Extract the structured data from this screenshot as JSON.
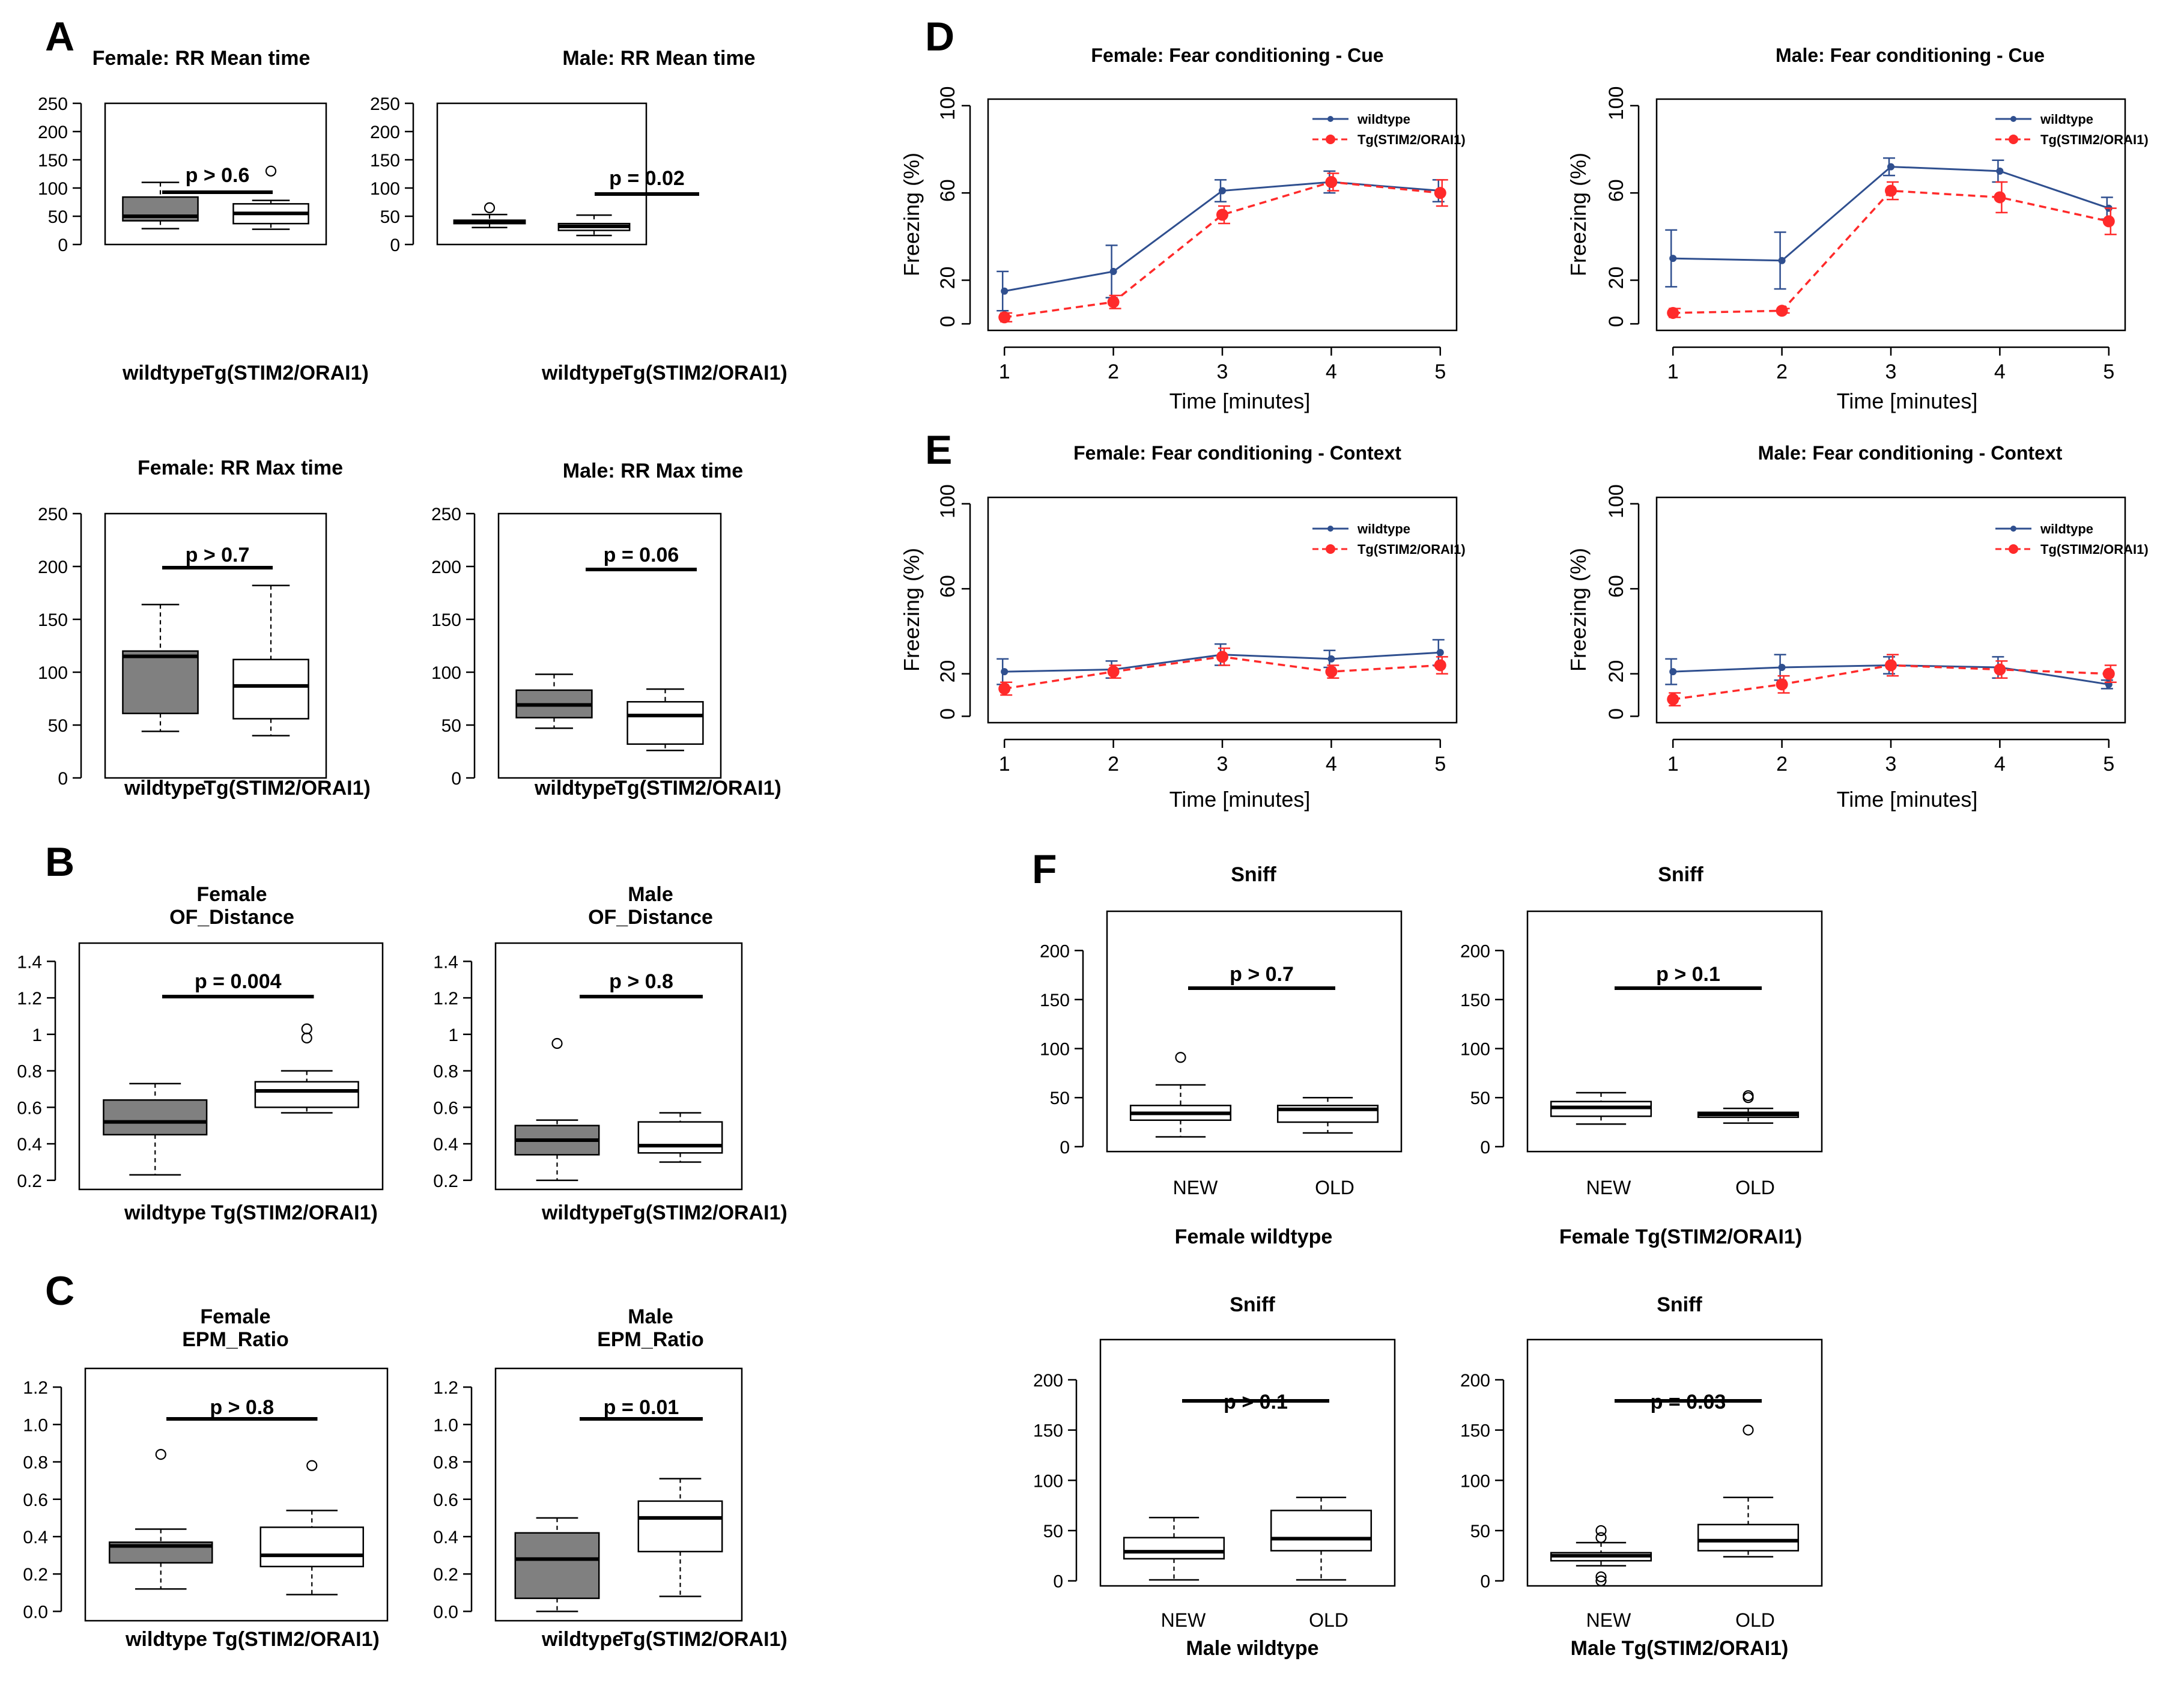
{
  "figure": {
    "panel_labels": [
      "A",
      "B",
      "C",
      "D",
      "E",
      "F"
    ]
  },
  "colors": {
    "wildtype": "#2f4f8f",
    "tg": "#ff2a2a",
    "box_fill_dark": "#808080",
    "box_fill_light": "#ffffff"
  },
  "chart_data": [
    {
      "id": "A1",
      "type": "boxplot",
      "panel": "A",
      "title": [
        "Female: RR Mean time"
      ],
      "categories": [
        "wildtype",
        "Tg(STIM2/ORAI1)"
      ],
      "ylim": [
        0,
        250
      ],
      "yticks": [
        0,
        50,
        100,
        150,
        200,
        250
      ],
      "ytick_labels": [
        "0",
        "50",
        "100",
        "150",
        "200",
        "250"
      ],
      "pvalue": "p > 0.6",
      "boxes": [
        {
          "min": 28,
          "q1": 42,
          "median": 50,
          "q3": 84,
          "max": 110,
          "outliers": []
        },
        {
          "min": 27,
          "q1": 37,
          "median": 55,
          "q3": 72,
          "max": 78,
          "outliers": [
            130
          ]
        }
      ]
    },
    {
      "id": "A2",
      "type": "boxplot",
      "panel": "A",
      "title": [
        "Male: RR Mean time"
      ],
      "categories": [
        "wildtype",
        "Tg(STIM2/ORAI1)"
      ],
      "ylim": [
        0,
        250
      ],
      "yticks": [
        0,
        50,
        100,
        150,
        200,
        250
      ],
      "ytick_labels": [
        "0",
        "50",
        "100",
        "150",
        "200",
        "250"
      ],
      "pvalue": "p = 0.02",
      "boxes": [
        {
          "min": 30,
          "q1": 37,
          "median": 40,
          "q3": 43,
          "max": 53,
          "outliers": [
            65
          ]
        },
        {
          "min": 16,
          "q1": 25,
          "median": 32,
          "q3": 37,
          "max": 52,
          "outliers": []
        }
      ]
    },
    {
      "id": "A3",
      "type": "boxplot",
      "panel": "A",
      "title": [
        "Female: RR Max time"
      ],
      "categories": [
        "wildtype",
        "Tg(STIM2/ORAI1)"
      ],
      "ylim": [
        0,
        250
      ],
      "yticks": [
        0,
        50,
        100,
        150,
        200,
        250
      ],
      "ytick_labels": [
        "0",
        "50",
        "100",
        "150",
        "200",
        "250"
      ],
      "pvalue": "p > 0.7",
      "boxes": [
        {
          "min": 44,
          "q1": 61,
          "median": 115,
          "q3": 120,
          "max": 164,
          "outliers": []
        },
        {
          "min": 40,
          "q1": 56,
          "median": 87,
          "q3": 112,
          "max": 182,
          "outliers": []
        }
      ]
    },
    {
      "id": "A4",
      "type": "boxplot",
      "panel": "A",
      "title": [
        "Male: RR Max time"
      ],
      "categories": [
        "wildtype",
        "Tg(STIM2/ORAI1)"
      ],
      "ylim": [
        0,
        250
      ],
      "yticks": [
        0,
        50,
        100,
        150,
        200,
        250
      ],
      "ytick_labels": [
        "0",
        "50",
        "100",
        "150",
        "200",
        "250"
      ],
      "pvalue": "p = 0.06",
      "boxes": [
        {
          "min": 47,
          "q1": 57,
          "median": 69,
          "q3": 83,
          "max": 98,
          "outliers": []
        },
        {
          "min": 26,
          "q1": 32,
          "median": 59,
          "q3": 72,
          "max": 84,
          "outliers": []
        }
      ]
    },
    {
      "id": "B1",
      "type": "boxplot",
      "panel": "B",
      "title": [
        "Female",
        "OF_Distance"
      ],
      "categories": [
        "wildtype",
        "Tg(STIM2/ORAI1)"
      ],
      "ylim": [
        0.15,
        1.5
      ],
      "yticks": [
        0.2,
        0.4,
        0.6,
        0.8,
        1.0,
        1.2,
        1.4
      ],
      "ytick_labels": [
        "0.2",
        "0.4",
        "0.6",
        "0.8",
        "1",
        "1.2",
        "1.4"
      ],
      "pvalue": "p = 0.004",
      "boxes": [
        {
          "min": 0.23,
          "q1": 0.45,
          "median": 0.52,
          "q3": 0.64,
          "max": 0.73,
          "outliers": []
        },
        {
          "min": 0.57,
          "q1": 0.6,
          "median": 0.69,
          "q3": 0.74,
          "max": 0.8,
          "outliers": [
            0.98,
            1.03
          ]
        }
      ]
    },
    {
      "id": "B2",
      "type": "boxplot",
      "panel": "B",
      "title": [
        "Male",
        "OF_Distance"
      ],
      "categories": [
        "wildtype",
        "Tg(STIM2/ORAI1)"
      ],
      "ylim": [
        0.15,
        1.5
      ],
      "yticks": [
        0.2,
        0.4,
        0.6,
        0.8,
        1.0,
        1.2,
        1.4
      ],
      "ytick_labels": [
        "0.2",
        "0.4",
        "0.6",
        "0.8",
        "1",
        "1.2",
        "1.4"
      ],
      "pvalue": "p > 0.8",
      "boxes": [
        {
          "min": 0.2,
          "q1": 0.34,
          "median": 0.42,
          "q3": 0.5,
          "max": 0.53,
          "outliers": [
            0.95
          ]
        },
        {
          "min": 0.3,
          "q1": 0.35,
          "median": 0.39,
          "q3": 0.52,
          "max": 0.57,
          "outliers": []
        }
      ]
    },
    {
      "id": "C1",
      "type": "boxplot",
      "panel": "C",
      "title": [
        "Female",
        "EPM_Ratio"
      ],
      "categories": [
        "wildtype",
        "Tg(STIM2/ORAI1)"
      ],
      "ylim": [
        -0.05,
        1.3
      ],
      "yticks": [
        0,
        0.2,
        0.4,
        0.6,
        0.8,
        1.0,
        1.2
      ],
      "ytick_labels": [
        "0.0",
        "0.2",
        "0.4",
        "0.6",
        "0.8",
        "1.0",
        "1.2"
      ],
      "pvalue": "p > 0.8",
      "boxes": [
        {
          "min": 0.12,
          "q1": 0.26,
          "median": 0.35,
          "q3": 0.37,
          "max": 0.44,
          "outliers": [
            0.84
          ]
        },
        {
          "min": 0.09,
          "q1": 0.24,
          "median": 0.3,
          "q3": 0.45,
          "max": 0.54,
          "outliers": [
            0.78
          ]
        }
      ]
    },
    {
      "id": "C2",
      "type": "boxplot",
      "panel": "C",
      "title": [
        "Male",
        "EPM_Ratio"
      ],
      "categories": [
        "wildtype",
        "Tg(STIM2/ORAI1)"
      ],
      "ylim": [
        -0.05,
        1.3
      ],
      "yticks": [
        0,
        0.2,
        0.4,
        0.6,
        0.8,
        1.0,
        1.2
      ],
      "ytick_labels": [
        "0.0",
        "0.2",
        "0.4",
        "0.6",
        "0.8",
        "1.0",
        "1.2"
      ],
      "pvalue": "p = 0.01",
      "boxes": [
        {
          "min": 0.0,
          "q1": 0.07,
          "median": 0.28,
          "q3": 0.42,
          "max": 0.5,
          "outliers": []
        },
        {
          "min": 0.08,
          "q1": 0.32,
          "median": 0.5,
          "q3": 0.59,
          "max": 0.71,
          "outliers": []
        }
      ]
    },
    {
      "id": "D1",
      "type": "line",
      "panel": "D",
      "title": "Female: Fear conditioning - Cue",
      "xlabel": "Time [minutes]",
      "ylabel": "Freezing (%)",
      "x": [
        1,
        2,
        3,
        4,
        5
      ],
      "xlim": [
        0.85,
        5.15
      ],
      "ylim": [
        -3,
        103
      ],
      "yticks": [
        0,
        20,
        60,
        100
      ],
      "ytick_labels": [
        "0",
        "20",
        "60",
        "100"
      ],
      "series": [
        {
          "name": "wildtype",
          "values": [
            15,
            24,
            61,
            65,
            61
          ],
          "errors": [
            9,
            12,
            5,
            5,
            5
          ]
        },
        {
          "name": "Tg(STIM2/ORAI1)",
          "values": [
            3,
            10,
            50,
            65,
            60
          ],
          "errors": [
            2,
            3,
            4,
            4,
            6
          ]
        }
      ]
    },
    {
      "id": "D2",
      "type": "line",
      "panel": "D",
      "title": "Male: Fear conditioning - Cue",
      "xlabel": "Time [minutes]",
      "ylabel": "Freezing (%)",
      "x": [
        1,
        2,
        3,
        4,
        5
      ],
      "xlim": [
        0.85,
        5.15
      ],
      "ylim": [
        -3,
        103
      ],
      "yticks": [
        0,
        20,
        60,
        100
      ],
      "ytick_labels": [
        "0",
        "20",
        "60",
        "100"
      ],
      "series": [
        {
          "name": "wildtype",
          "values": [
            30,
            29,
            72,
            70,
            53
          ],
          "errors": [
            13,
            13,
            4,
            5,
            5
          ]
        },
        {
          "name": "Tg(STIM2/ORAI1)",
          "values": [
            5,
            6,
            61,
            58,
            47
          ],
          "errors": [
            2,
            1,
            4,
            7,
            6
          ]
        }
      ]
    },
    {
      "id": "E1",
      "type": "line",
      "panel": "E",
      "title": "Female: Fear conditioning - Context",
      "xlabel": "Time [minutes]",
      "ylabel": "Freezing (%)",
      "x": [
        1,
        2,
        3,
        4,
        5
      ],
      "xlim": [
        0.85,
        5.15
      ],
      "ylim": [
        -3,
        103
      ],
      "yticks": [
        0,
        20,
        60,
        100
      ],
      "ytick_labels": [
        "0",
        "20",
        "60",
        "100"
      ],
      "series": [
        {
          "name": "wildtype",
          "values": [
            21,
            22,
            29,
            27,
            30
          ],
          "errors": [
            6,
            4,
            5,
            4,
            6
          ]
        },
        {
          "name": "Tg(STIM2/ORAI1)",
          "values": [
            13,
            21,
            28,
            21,
            24
          ],
          "errors": [
            3,
            3,
            4,
            3,
            4
          ]
        }
      ]
    },
    {
      "id": "E2",
      "type": "line",
      "panel": "E",
      "title": "Male: Fear conditioning - Context",
      "xlabel": "Time [minutes]",
      "ylabel": "Freezing (%)",
      "x": [
        1,
        2,
        3,
        4,
        5
      ],
      "xlim": [
        0.85,
        5.15
      ],
      "ylim": [
        -3,
        103
      ],
      "yticks": [
        0,
        20,
        60,
        100
      ],
      "ytick_labels": [
        "0",
        "20",
        "60",
        "100"
      ],
      "series": [
        {
          "name": "wildtype",
          "values": [
            21,
            23,
            24,
            23,
            15
          ],
          "errors": [
            6,
            6,
            4,
            5,
            2
          ]
        },
        {
          "name": "Tg(STIM2/ORAI1)",
          "values": [
            8,
            15,
            24,
            22,
            20
          ],
          "errors": [
            3,
            4,
            5,
            4,
            4
          ]
        }
      ]
    },
    {
      "id": "F1",
      "type": "boxplot",
      "panel": "F",
      "title": [
        "Sniff"
      ],
      "xlabel": "Female wildtype",
      "categories": [
        "NEW",
        "OLD"
      ],
      "ylim": [
        -5,
        240
      ],
      "yticks": [
        0,
        50,
        100,
        150,
        200
      ],
      "ytick_labels": [
        "0",
        "50",
        "100",
        "150",
        "200"
      ],
      "pvalue": "p > 0.7",
      "boxes": [
        {
          "min": 10,
          "q1": 27,
          "median": 34,
          "q3": 42,
          "max": 63,
          "outliers": [
            91
          ]
        },
        {
          "min": 14,
          "q1": 25,
          "median": 38,
          "q3": 42,
          "max": 50,
          "outliers": []
        }
      ]
    },
    {
      "id": "F2",
      "type": "boxplot",
      "panel": "F",
      "title": [
        "Sniff"
      ],
      "xlabel": "Female Tg(STIM2/ORAI1)",
      "categories": [
        "NEW",
        "OLD"
      ],
      "ylim": [
        -5,
        240
      ],
      "yticks": [
        0,
        50,
        100,
        150,
        200
      ],
      "ytick_labels": [
        "0",
        "50",
        "100",
        "150",
        "200"
      ],
      "pvalue": "p > 0.1",
      "boxes": [
        {
          "min": 23,
          "q1": 31,
          "median": 40,
          "q3": 46,
          "max": 55,
          "outliers": []
        },
        {
          "min": 24,
          "q1": 30,
          "median": 33,
          "q3": 35,
          "max": 39,
          "outliers": [
            50,
            52
          ]
        }
      ]
    },
    {
      "id": "F3",
      "type": "boxplot",
      "panel": "F",
      "title": [
        "Sniff"
      ],
      "xlabel": "Male wildtype",
      "categories": [
        "NEW",
        "OLD"
      ],
      "ylim": [
        -5,
        240
      ],
      "yticks": [
        0,
        50,
        100,
        150,
        200
      ],
      "ytick_labels": [
        "0",
        "50",
        "100",
        "150",
        "200"
      ],
      "pvalue": "p > 0.1",
      "boxes": [
        {
          "min": 1,
          "q1": 22,
          "median": 29,
          "q3": 43,
          "max": 63,
          "outliers": []
        },
        {
          "min": 1,
          "q1": 30,
          "median": 42,
          "q3": 70,
          "max": 83,
          "outliers": []
        }
      ]
    },
    {
      "id": "F4",
      "type": "boxplot",
      "panel": "F",
      "title": [
        "Sniff"
      ],
      "xlabel": "Male Tg(STIM2/ORAI1)",
      "categories": [
        "NEW",
        "OLD"
      ],
      "ylim": [
        -5,
        240
      ],
      "yticks": [
        0,
        50,
        100,
        150,
        200
      ],
      "ytick_labels": [
        "0",
        "50",
        "100",
        "150",
        "200"
      ],
      "pvalue": "p = 0.03",
      "boxes": [
        {
          "min": 15,
          "q1": 20,
          "median": 25,
          "q3": 28,
          "max": 38,
          "outliers": [
            0,
            4,
            43,
            50
          ]
        },
        {
          "min": 24,
          "q1": 30,
          "median": 40,
          "q3": 56,
          "max": 83,
          "outliers": [
            150
          ]
        }
      ]
    }
  ]
}
